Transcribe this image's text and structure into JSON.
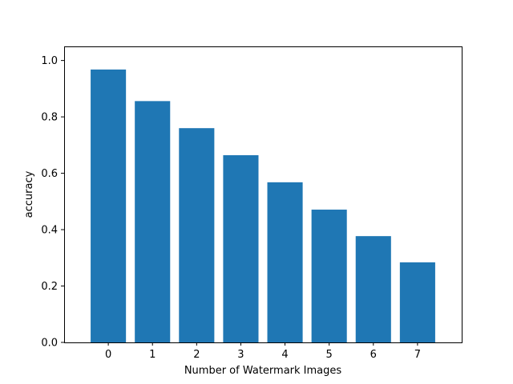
{
  "chart_data": {
    "type": "bar",
    "title": "",
    "xlabel": "Number of Watermark Images",
    "ylabel": "accuracy",
    "categories": [
      "0",
      "1",
      "2",
      "3",
      "4",
      "5",
      "6",
      "7"
    ],
    "values": [
      0.968,
      0.856,
      0.76,
      0.664,
      0.568,
      0.471,
      0.377,
      0.284
    ],
    "ylim": [
      0,
      1.0
    ],
    "yticks": [
      "0.0",
      "0.2",
      "0.4",
      "0.6",
      "0.8",
      "1.0"
    ],
    "grid": false,
    "legend": "none",
    "bar_color": "#1f77b4"
  }
}
